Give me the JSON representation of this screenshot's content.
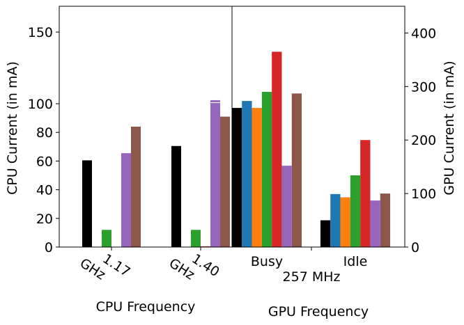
{
  "chart_data": [
    {
      "id": "cpu",
      "type": "bar",
      "xlabel": "CPU Frequency",
      "ylabel": "CPU Current (in mA)",
      "ylim": [
        0,
        168
      ],
      "yticks": [
        0,
        20,
        40,
        60,
        80,
        100,
        150
      ],
      "categories": [
        "1.17\nGHz",
        "1.40\nGHz"
      ],
      "series": [
        {
          "color": "#000000",
          "values": [
            60.5,
            70.5
          ]
        },
        {
          "color": "#1f77b4",
          "values": [
            0,
            0
          ]
        },
        {
          "color": "#2ca02c",
          "values": [
            12,
            12
          ]
        },
        {
          "color": "#d62728",
          "values": [
            0,
            0.5
          ]
        },
        {
          "color": "#9467bd",
          "values": [
            65.5,
            100.5
          ]
        },
        {
          "color": "#8c564b",
          "values": [
            84,
            91
          ]
        }
      ],
      "annotations": [
        {
          "text": "—",
          "series_color": "#9467bd",
          "category": 1,
          "value": 102
        }
      ],
      "legend": "none"
    },
    {
      "id": "gpu",
      "type": "bar",
      "xlabel": "GPU Frequency",
      "sublabel": "257 MHz",
      "ylabel": "GPU Current (in mA)",
      "ylim": [
        0,
        450
      ],
      "yticks": [
        0,
        100,
        200,
        300,
        400
      ],
      "categories": [
        "Busy",
        "Idle"
      ],
      "series": [
        {
          "color": "#000000",
          "values": [
            260,
            50
          ]
        },
        {
          "color": "#1f77b4",
          "values": [
            273,
            99
          ]
        },
        {
          "color": "#ff7f0e",
          "values": [
            260,
            93
          ]
        },
        {
          "color": "#2ca02c",
          "values": [
            290,
            134
          ]
        },
        {
          "color": "#d62728",
          "values": [
            365,
            200
          ]
        },
        {
          "color": "#9467bd",
          "values": [
            152,
            87
          ]
        },
        {
          "color": "#8c564b",
          "values": [
            287,
            100
          ]
        }
      ],
      "legend": "none"
    }
  ]
}
